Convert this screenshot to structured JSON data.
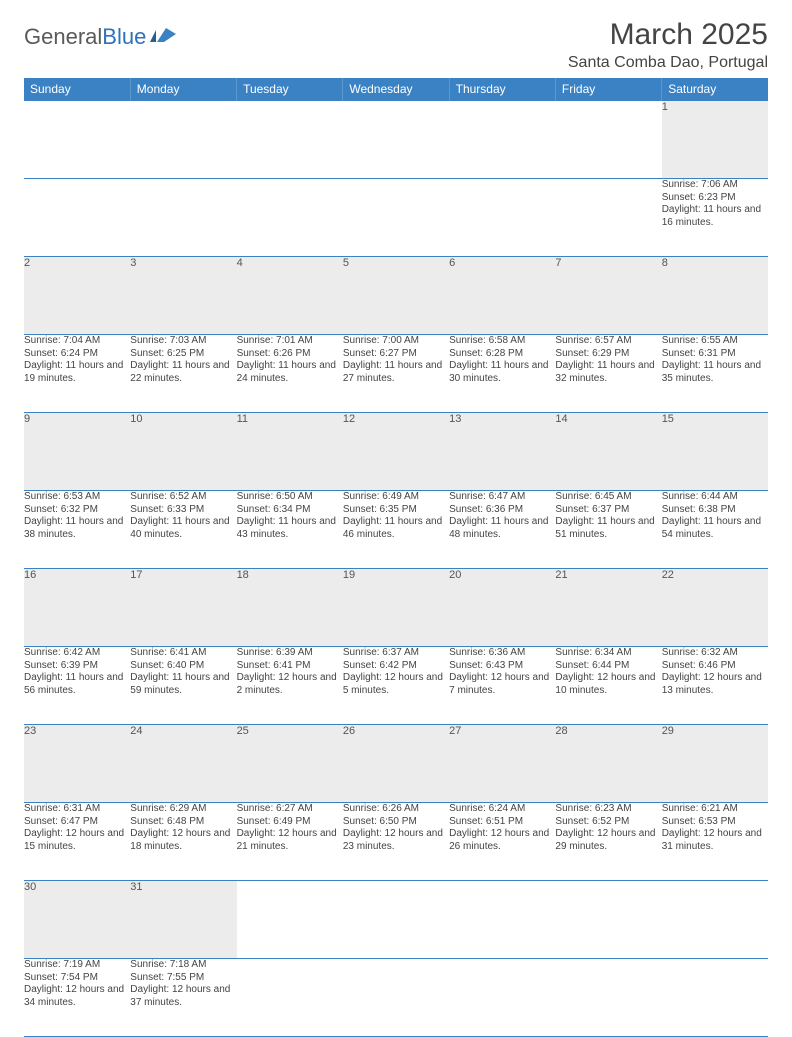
{
  "brand": {
    "name1": "General",
    "name2": "Blue"
  },
  "title": "March 2025",
  "location": "Santa Comba Dao, Portugal",
  "colors": {
    "header_bg": "#3b82c4",
    "header_text": "#ffffff",
    "daynum_bg": "#ececec",
    "border": "#3b82c4",
    "text": "#444444"
  },
  "weekdays": [
    "Sunday",
    "Monday",
    "Tuesday",
    "Wednesday",
    "Thursday",
    "Friday",
    "Saturday"
  ],
  "weeks": [
    [
      null,
      null,
      null,
      null,
      null,
      null,
      {
        "n": "1",
        "sr": "7:06 AM",
        "ss": "6:23 PM",
        "dl": "11 hours and 16 minutes."
      }
    ],
    [
      {
        "n": "2",
        "sr": "7:04 AM",
        "ss": "6:24 PM",
        "dl": "11 hours and 19 minutes."
      },
      {
        "n": "3",
        "sr": "7:03 AM",
        "ss": "6:25 PM",
        "dl": "11 hours and 22 minutes."
      },
      {
        "n": "4",
        "sr": "7:01 AM",
        "ss": "6:26 PM",
        "dl": "11 hours and 24 minutes."
      },
      {
        "n": "5",
        "sr": "7:00 AM",
        "ss": "6:27 PM",
        "dl": "11 hours and 27 minutes."
      },
      {
        "n": "6",
        "sr": "6:58 AM",
        "ss": "6:28 PM",
        "dl": "11 hours and 30 minutes."
      },
      {
        "n": "7",
        "sr": "6:57 AM",
        "ss": "6:29 PM",
        "dl": "11 hours and 32 minutes."
      },
      {
        "n": "8",
        "sr": "6:55 AM",
        "ss": "6:31 PM",
        "dl": "11 hours and 35 minutes."
      }
    ],
    [
      {
        "n": "9",
        "sr": "6:53 AM",
        "ss": "6:32 PM",
        "dl": "11 hours and 38 minutes."
      },
      {
        "n": "10",
        "sr": "6:52 AM",
        "ss": "6:33 PM",
        "dl": "11 hours and 40 minutes."
      },
      {
        "n": "11",
        "sr": "6:50 AM",
        "ss": "6:34 PM",
        "dl": "11 hours and 43 minutes."
      },
      {
        "n": "12",
        "sr": "6:49 AM",
        "ss": "6:35 PM",
        "dl": "11 hours and 46 minutes."
      },
      {
        "n": "13",
        "sr": "6:47 AM",
        "ss": "6:36 PM",
        "dl": "11 hours and 48 minutes."
      },
      {
        "n": "14",
        "sr": "6:45 AM",
        "ss": "6:37 PM",
        "dl": "11 hours and 51 minutes."
      },
      {
        "n": "15",
        "sr": "6:44 AM",
        "ss": "6:38 PM",
        "dl": "11 hours and 54 minutes."
      }
    ],
    [
      {
        "n": "16",
        "sr": "6:42 AM",
        "ss": "6:39 PM",
        "dl": "11 hours and 56 minutes."
      },
      {
        "n": "17",
        "sr": "6:41 AM",
        "ss": "6:40 PM",
        "dl": "11 hours and 59 minutes."
      },
      {
        "n": "18",
        "sr": "6:39 AM",
        "ss": "6:41 PM",
        "dl": "12 hours and 2 minutes."
      },
      {
        "n": "19",
        "sr": "6:37 AM",
        "ss": "6:42 PM",
        "dl": "12 hours and 5 minutes."
      },
      {
        "n": "20",
        "sr": "6:36 AM",
        "ss": "6:43 PM",
        "dl": "12 hours and 7 minutes."
      },
      {
        "n": "21",
        "sr": "6:34 AM",
        "ss": "6:44 PM",
        "dl": "12 hours and 10 minutes."
      },
      {
        "n": "22",
        "sr": "6:32 AM",
        "ss": "6:46 PM",
        "dl": "12 hours and 13 minutes."
      }
    ],
    [
      {
        "n": "23",
        "sr": "6:31 AM",
        "ss": "6:47 PM",
        "dl": "12 hours and 15 minutes."
      },
      {
        "n": "24",
        "sr": "6:29 AM",
        "ss": "6:48 PM",
        "dl": "12 hours and 18 minutes."
      },
      {
        "n": "25",
        "sr": "6:27 AM",
        "ss": "6:49 PM",
        "dl": "12 hours and 21 minutes."
      },
      {
        "n": "26",
        "sr": "6:26 AM",
        "ss": "6:50 PM",
        "dl": "12 hours and 23 minutes."
      },
      {
        "n": "27",
        "sr": "6:24 AM",
        "ss": "6:51 PM",
        "dl": "12 hours and 26 minutes."
      },
      {
        "n": "28",
        "sr": "6:23 AM",
        "ss": "6:52 PM",
        "dl": "12 hours and 29 minutes."
      },
      {
        "n": "29",
        "sr": "6:21 AM",
        "ss": "6:53 PM",
        "dl": "12 hours and 31 minutes."
      }
    ],
    [
      {
        "n": "30",
        "sr": "7:19 AM",
        "ss": "7:54 PM",
        "dl": "12 hours and 34 minutes."
      },
      {
        "n": "31",
        "sr": "7:18 AM",
        "ss": "7:55 PM",
        "dl": "12 hours and 37 minutes."
      },
      null,
      null,
      null,
      null,
      null
    ]
  ],
  "labels": {
    "sunrise": "Sunrise: ",
    "sunset": "Sunset: ",
    "daylight": "Daylight: "
  }
}
